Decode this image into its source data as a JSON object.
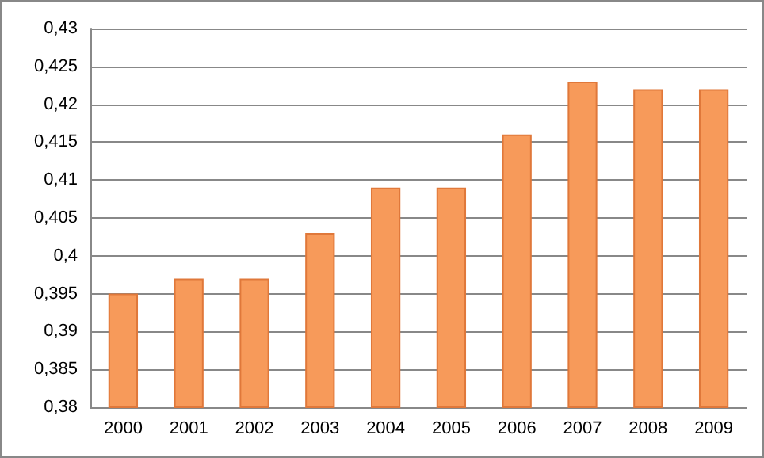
{
  "chart_data": {
    "type": "bar",
    "categories": [
      "2000",
      "2001",
      "2002",
      "2003",
      "2004",
      "2005",
      "2006",
      "2007",
      "2008",
      "2009"
    ],
    "values": [
      0.395,
      0.397,
      0.397,
      0.403,
      0.409,
      0.409,
      0.416,
      0.423,
      0.422,
      0.422
    ],
    "color": "#f79a5a",
    "ylim": [
      0.38,
      0.43
    ],
    "yticks": [
      {
        "value": 0.38,
        "label": "0,38"
      },
      {
        "value": 0.385,
        "label": "0,385"
      },
      {
        "value": 0.39,
        "label": "0,39"
      },
      {
        "value": 0.395,
        "label": "0,395"
      },
      {
        "value": 0.4,
        "label": "0,4"
      },
      {
        "value": 0.405,
        "label": "0,405"
      },
      {
        "value": 0.41,
        "label": "0,41"
      },
      {
        "value": 0.415,
        "label": "0,415"
      },
      {
        "value": 0.42,
        "label": "0,42"
      },
      {
        "value": 0.425,
        "label": "0,425"
      },
      {
        "value": 0.43,
        "label": "0,43"
      }
    ],
    "grid": true
  }
}
